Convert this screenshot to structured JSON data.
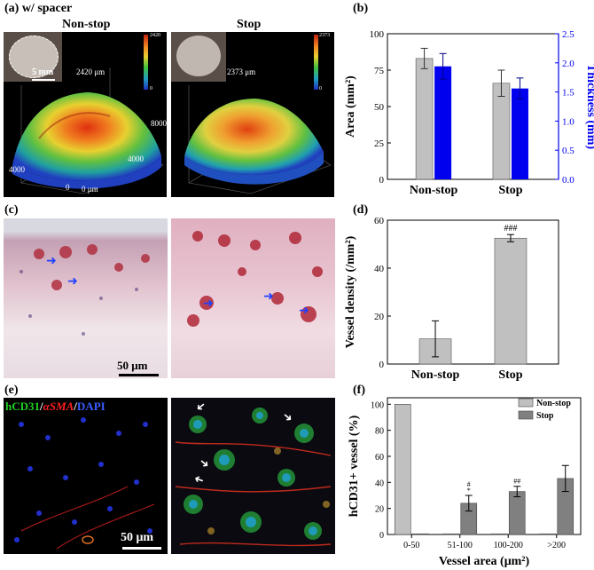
{
  "panel_a": {
    "label": "(a) w/ spacer",
    "left_title": "Non-stop",
    "right_title": "Stop",
    "left_peak": "2420 μm",
    "right_peak": "2373 μm",
    "inset_scale": "5 mm",
    "left_colorbar_ticks": [
      "2420",
      "2000",
      "1500",
      "1000",
      "500",
      "0"
    ],
    "right_colorbar_ticks": [
      "2373",
      "2000",
      "1500",
      "1000",
      "500",
      "0"
    ],
    "axis_ticks": {
      "x1": "4000",
      "x2": "0",
      "x3": "0 μm",
      "y1": "4000",
      "y2": "8000"
    }
  },
  "panel_c": {
    "label": "(c)",
    "scale": "50 μm"
  },
  "panel_e": {
    "label": "(e)",
    "stain_hcd31": "hCD31",
    "stain_sep1": "/",
    "stain_asma": "αSMA",
    "stain_sep2": "/",
    "stain_dapi": "DAPI",
    "scale": "50 μm"
  },
  "chart_b": {
    "label": "(b)"
  },
  "chart_d": {
    "label": "(d)"
  },
  "chart_f": {
    "label": "(f)"
  },
  "colors": {
    "gray_light": "#c0c0c0",
    "gray_dark": "#808080",
    "blue": "#0000ee"
  },
  "chart_data": [
    {
      "id": "b",
      "type": "bar",
      "categories": [
        "Non-stop",
        "Stop"
      ],
      "series": [
        {
          "values": [
            83,
            66
          ],
          "errors": [
            7,
            9
          ],
          "axis": "left",
          "color": "#c0c0c0"
        },
        {
          "values": [
            1.94,
            1.56
          ],
          "errors": [
            0.22,
            0.18
          ],
          "axis": "right",
          "color": "#0000ee"
        }
      ],
      "ylabel": "Area (mm²)",
      "ylabel_right": "Thickness (mm)",
      "ylim": [
        0,
        100
      ],
      "ylim_right": [
        0,
        2.5
      ],
      "yticks": [
        0,
        25,
        50,
        75,
        100
      ],
      "yticks_right": [
        "0.0",
        "0.5",
        "1.0",
        "1.5",
        "2.0",
        "2.5"
      ]
    },
    {
      "id": "d",
      "type": "bar",
      "categories": [
        "Non-stop",
        "Stop"
      ],
      "values": [
        10.5,
        52.5
      ],
      "errors": [
        7.5,
        1.5
      ],
      "annotations": [
        "",
        "###"
      ],
      "ylabel": "Vessel density (/mm²)",
      "ylim": [
        0,
        60
      ],
      "yticks": [
        0,
        20,
        40,
        60
      ]
    },
    {
      "id": "f",
      "type": "bar",
      "categories": [
        "0-50",
        "51-100",
        "100-200",
        ">200"
      ],
      "series": [
        {
          "name": "Non-stop",
          "values": [
            100,
            0.5,
            0.5,
            0.5
          ],
          "errors": [
            0,
            0,
            0,
            0
          ]
        },
        {
          "name": "Stop",
          "values": [
            0.5,
            24,
            33,
            43
          ],
          "errors": [
            0,
            6,
            4,
            10
          ]
        }
      ],
      "annotations": [
        "",
        "#\n*",
        "##",
        ""
      ],
      "xlabel": "Vessel area (μm²)",
      "ylabel": "hCD31+ vessel (%)",
      "ylim": [
        0,
        105
      ],
      "yticks": [
        0,
        20,
        40,
        60,
        80,
        100
      ],
      "legend": "top-right"
    }
  ]
}
